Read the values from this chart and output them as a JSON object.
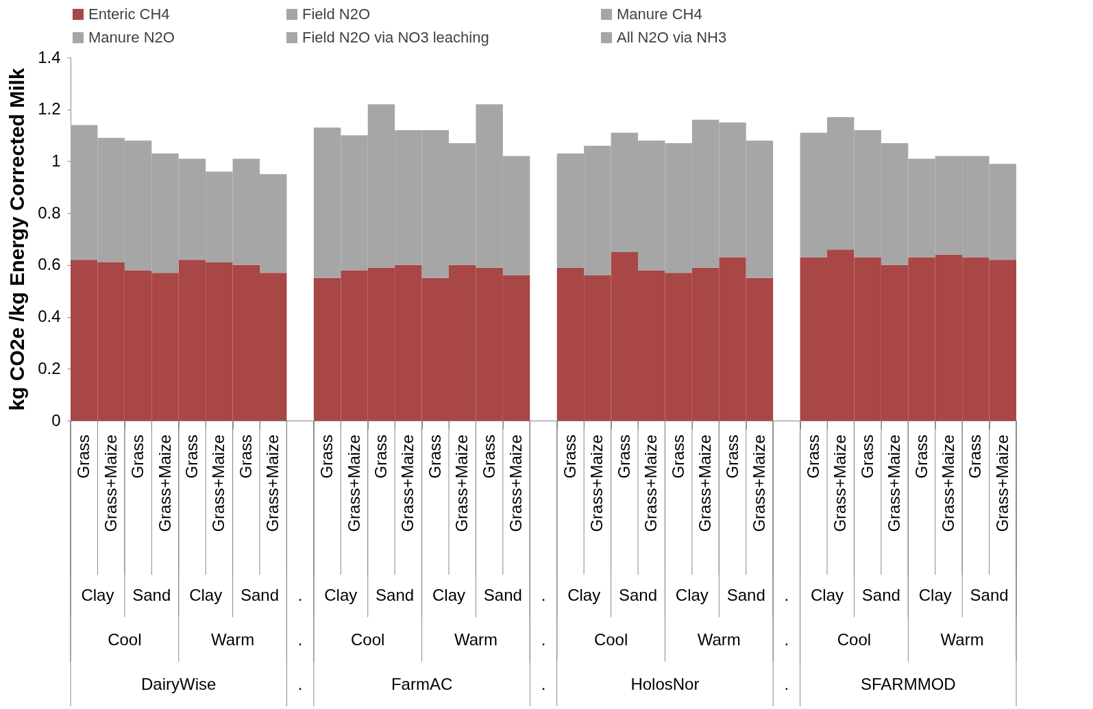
{
  "chart_data": {
    "type": "bar",
    "stacked": true,
    "ylabel": "kg CO2e /kg Energy Corrected Milk",
    "categories": [
      "Grass",
      "Grass+Maize",
      "Grass",
      "Grass+Maize",
      "Grass",
      "Grass+Maize",
      "Grass",
      "Grass+Maize",
      null,
      "Grass",
      "Grass+Maize",
      "Grass",
      "Grass+Maize",
      "Grass",
      "Grass+Maize",
      "Grass",
      "Grass+Maize",
      null,
      "Grass",
      "Grass+Maize",
      "Grass",
      "Grass+Maize",
      "Grass",
      "Grass+Maize",
      "Grass",
      "Grass+Maize",
      null,
      "Grass",
      "Grass+Maize",
      "Grass",
      "Grass+Maize",
      "Grass",
      "Grass+Maize",
      "Grass",
      "Grass+Maize"
    ],
    "series": [
      {
        "name": "Enteric CH4",
        "color": "#a94646",
        "values": [
          0.62,
          0.61,
          0.58,
          0.57,
          0.62,
          0.61,
          0.6,
          0.57,
          null,
          0.55,
          0.58,
          0.59,
          0.6,
          0.55,
          0.6,
          0.59,
          0.56,
          null,
          0.59,
          0.56,
          0.65,
          0.58,
          0.57,
          0.59,
          0.63,
          0.55,
          null,
          0.63,
          0.66,
          0.63,
          0.6,
          0.63,
          0.64,
          0.63,
          0.62
        ]
      },
      {
        "name": "Field N2O",
        "color": "#a6a6a6",
        "values": [
          null,
          null,
          null,
          null,
          null,
          null,
          null,
          null,
          null,
          null,
          null,
          null,
          null,
          null,
          null,
          null,
          null,
          null,
          null,
          null,
          null,
          null,
          null,
          null,
          null,
          null,
          null,
          null,
          null,
          null,
          null,
          null,
          null,
          null,
          null
        ]
      },
      {
        "name": "Manure CH4",
        "color": "#a6a6a6",
        "values": [
          null,
          null,
          null,
          null,
          null,
          null,
          null,
          null,
          null,
          null,
          null,
          null,
          null,
          null,
          null,
          null,
          null,
          null,
          null,
          null,
          null,
          null,
          null,
          null,
          null,
          null,
          null,
          null,
          null,
          null,
          null,
          null,
          null,
          null,
          null
        ]
      },
      {
        "name": "Manure N2O",
        "color": "#a6a6a6",
        "values": [
          null,
          null,
          null,
          null,
          null,
          null,
          null,
          null,
          null,
          null,
          null,
          null,
          null,
          null,
          null,
          null,
          null,
          null,
          null,
          null,
          null,
          null,
          null,
          null,
          null,
          null,
          null,
          null,
          null,
          null,
          null,
          null,
          null,
          null,
          null
        ]
      },
      {
        "name": "Field N2O via NO3 leaching",
        "color": "#a6a6a6",
        "values": [
          null,
          null,
          null,
          null,
          null,
          null,
          null,
          null,
          null,
          null,
          null,
          null,
          null,
          null,
          null,
          null,
          null,
          null,
          null,
          null,
          null,
          null,
          null,
          null,
          null,
          null,
          null,
          null,
          null,
          null,
          null,
          null,
          null,
          null,
          null
        ]
      },
      {
        "name": "All N2O via NH3",
        "color": "#a6a6a6",
        "values": [
          null,
          null,
          null,
          null,
          null,
          null,
          null,
          null,
          null,
          null,
          null,
          null,
          null,
          null,
          null,
          null,
          null,
          null,
          null,
          null,
          null,
          null,
          null,
          null,
          null,
          null,
          null,
          null,
          null,
          null,
          null,
          null,
          null,
          null,
          null
        ]
      },
      {
        "color": "#a6a6a6",
        "values": [
          0.52,
          0.48,
          0.5,
          0.46,
          0.39,
          0.35,
          0.41,
          0.38,
          null,
          0.58,
          0.52,
          0.63,
          0.52,
          0.57,
          0.47,
          0.63,
          0.46,
          null,
          0.44,
          0.5,
          0.46,
          0.5,
          0.5,
          0.57,
          0.52,
          0.53,
          null,
          0.48,
          0.51,
          0.49,
          0.47,
          0.38,
          0.38,
          0.39,
          0.37
        ]
      }
    ],
    "ylim": [
      0,
      1.4
    ],
    "yticks": [
      0,
      0.2,
      0.4,
      0.6,
      0.8,
      1,
      1.2,
      1.4
    ],
    "grid": false,
    "legend": "top",
    "annotations": [
      "Clay",
      "Sand",
      "Clay",
      "Sand",
      ".",
      "Clay",
      "Sand",
      "Clay",
      "Sand",
      ".",
      "Clay",
      "Sand",
      "Clay",
      "Sand",
      ".",
      "Clay",
      "Sand",
      "Clay",
      "Sand",
      "Cool",
      "Warm",
      ".",
      "Cool",
      "Warm",
      ".",
      "Cool",
      "Warm",
      ".",
      "Cool",
      "Warm",
      "DairyWise",
      ".",
      "FarmAC",
      ".",
      "HolosNor",
      ".",
      "SFARMMOD"
    ]
  }
}
